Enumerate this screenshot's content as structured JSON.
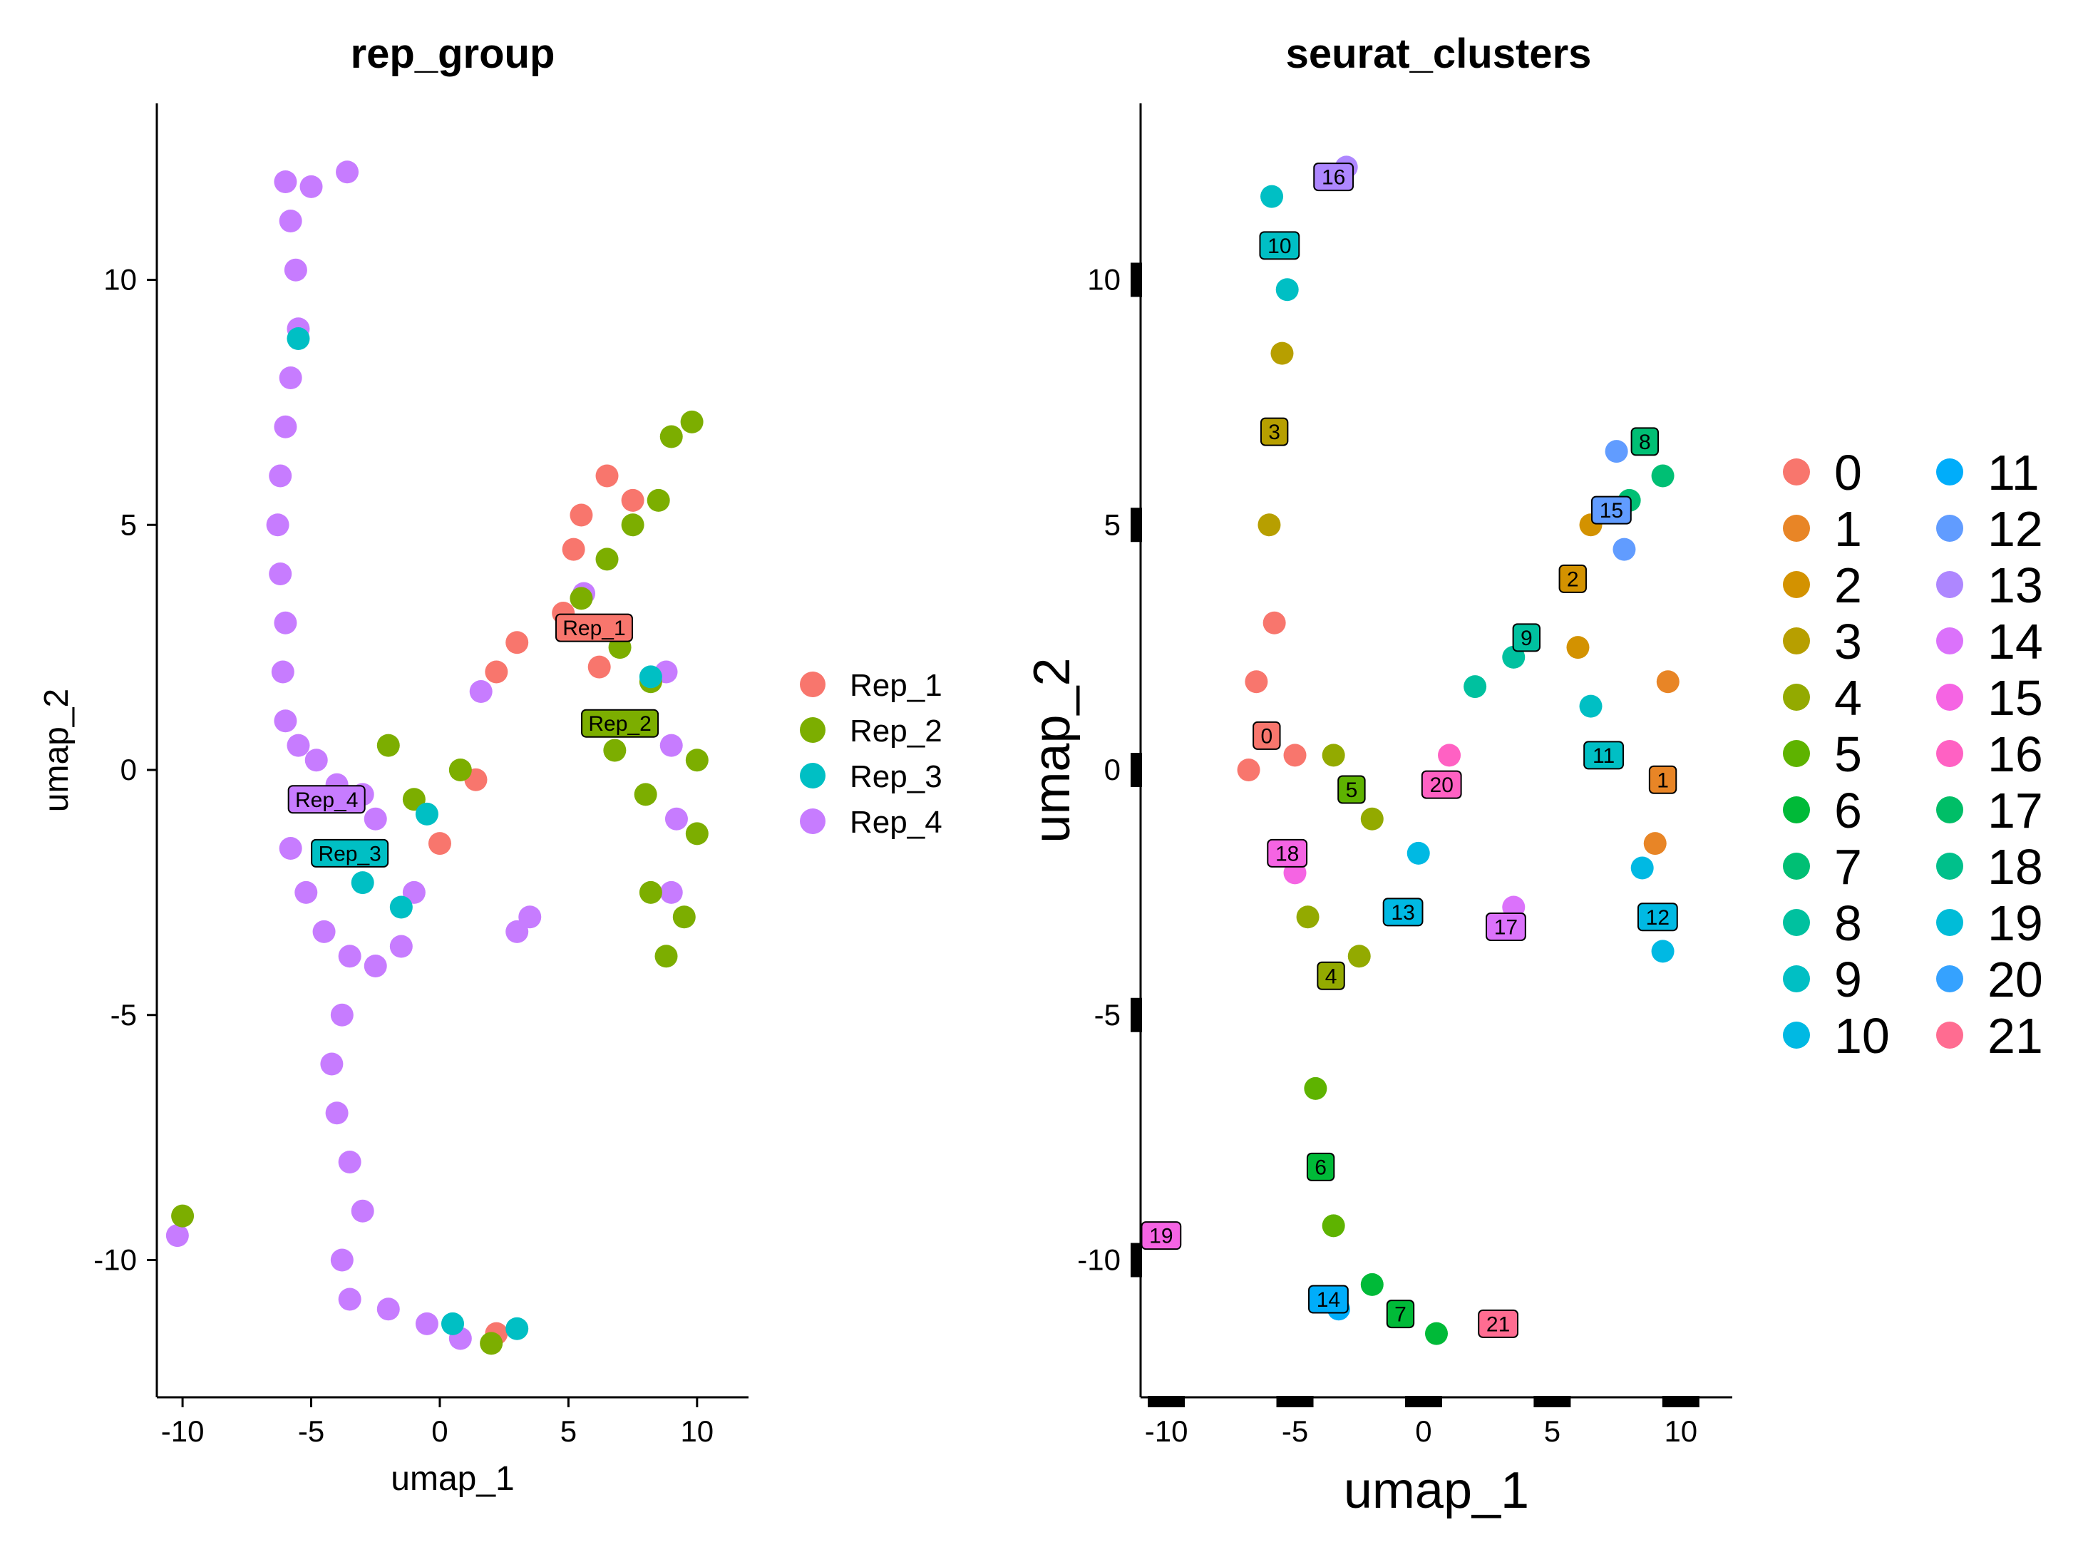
{
  "chart_data": [
    {
      "type": "scatter",
      "title": "rep_group",
      "xlabel": "umap_1",
      "ylabel": "umap_2",
      "xlim": [
        -11,
        12
      ],
      "ylim": [
        -12.8,
        13.6
      ],
      "xticks": [
        -10,
        -5,
        0,
        5,
        10
      ],
      "xtick_labels": [
        "-10",
        "-5",
        "0",
        "5",
        "10"
      ],
      "yticks": [
        -10,
        -5,
        0,
        5,
        10
      ],
      "ytick_labels": [
        "-10",
        "-5",
        "0",
        "5",
        "10"
      ],
      "grid": false,
      "legend_position": "right",
      "series": [
        {
          "name": "Rep_1",
          "color": "#F8766D"
        },
        {
          "name": "Rep_2",
          "color": "#7CAE00"
        },
        {
          "name": "Rep_3",
          "color": "#00BFC4"
        },
        {
          "name": "Rep_4",
          "color": "#C77CFF"
        }
      ],
      "group_labels": [
        {
          "text": "Rep_1",
          "x": 6.0,
          "y": 2.9,
          "color": "#F8766D"
        },
        {
          "text": "Rep_2",
          "x": 7.0,
          "y": 0.95,
          "color": "#7CAE00"
        },
        {
          "text": "Rep_3",
          "x": -3.5,
          "y": -1.7,
          "color": "#00BFC4"
        },
        {
          "text": "Rep_4",
          "x": -4.4,
          "y": -0.6,
          "color": "#C77CFF"
        }
      ],
      "points": [
        {
          "x": -6.0,
          "y": 12.0,
          "series": 3
        },
        {
          "x": -5.8,
          "y": 11.2,
          "series": 3
        },
        {
          "x": -5.6,
          "y": 10.2,
          "series": 3
        },
        {
          "x": -5.5,
          "y": 9.0,
          "series": 3
        },
        {
          "x": -5.8,
          "y": 8.0,
          "series": 3
        },
        {
          "x": -6.0,
          "y": 7.0,
          "series": 3
        },
        {
          "x": -6.2,
          "y": 6.0,
          "series": 3
        },
        {
          "x": -6.3,
          "y": 5.0,
          "series": 3
        },
        {
          "x": -6.2,
          "y": 4.0,
          "series": 3
        },
        {
          "x": -6.0,
          "y": 3.0,
          "series": 3
        },
        {
          "x": -6.1,
          "y": 2.0,
          "series": 3
        },
        {
          "x": -6.0,
          "y": 1.0,
          "series": 3
        },
        {
          "x": -5.5,
          "y": 0.5,
          "series": 3
        },
        {
          "x": -4.8,
          "y": 0.2,
          "series": 3
        },
        {
          "x": -4.0,
          "y": -0.3,
          "series": 3
        },
        {
          "x": -3.0,
          "y": -0.5,
          "series": 3
        },
        {
          "x": -2.5,
          "y": -1.0,
          "series": 3
        },
        {
          "x": -5.8,
          "y": -1.6,
          "series": 3
        },
        {
          "x": -5.2,
          "y": -2.5,
          "series": 3
        },
        {
          "x": -4.5,
          "y": -3.3,
          "series": 3
        },
        {
          "x": -3.5,
          "y": -3.8,
          "series": 3
        },
        {
          "x": -2.5,
          "y": -4.0,
          "series": 3
        },
        {
          "x": -1.5,
          "y": -3.6,
          "series": 3
        },
        {
          "x": -1.0,
          "y": -2.5,
          "series": 3
        },
        {
          "x": -3.8,
          "y": -5.0,
          "series": 3
        },
        {
          "x": -4.2,
          "y": -6.0,
          "series": 3
        },
        {
          "x": -4.0,
          "y": -7.0,
          "series": 3
        },
        {
          "x": -3.5,
          "y": -8.0,
          "series": 3
        },
        {
          "x": -3.0,
          "y": -9.0,
          "series": 3
        },
        {
          "x": -3.8,
          "y": -10.0,
          "series": 3
        },
        {
          "x": -3.5,
          "y": -10.8,
          "series": 3
        },
        {
          "x": -2.0,
          "y": -11.0,
          "series": 3
        },
        {
          "x": -0.5,
          "y": -11.3,
          "series": 3
        },
        {
          "x": 0.8,
          "y": -11.6,
          "series": 3
        },
        {
          "x": -10.2,
          "y": -9.5,
          "series": 3
        },
        {
          "x": 1.6,
          "y": 1.6,
          "series": 3
        },
        {
          "x": 3.5,
          "y": -3.0,
          "series": 3
        },
        {
          "x": 3.0,
          "y": -3.3,
          "series": 3
        },
        {
          "x": -5.0,
          "y": 11.9,
          "series": 3
        },
        {
          "x": -3.6,
          "y": 12.2,
          "series": 3
        },
        {
          "x": 5.6,
          "y": 3.6,
          "series": 3
        },
        {
          "x": 8.8,
          "y": 2.0,
          "series": 3
        },
        {
          "x": 9.0,
          "y": 0.5,
          "series": 3
        },
        {
          "x": 9.2,
          "y": -1.0,
          "series": 3
        },
        {
          "x": 9.0,
          "y": -2.5,
          "series": 3
        },
        {
          "x": 6.5,
          "y": 6.0,
          "series": 0
        },
        {
          "x": 5.5,
          "y": 5.2,
          "series": 0
        },
        {
          "x": 5.2,
          "y": 4.5,
          "series": 0
        },
        {
          "x": 4.8,
          "y": 3.2,
          "series": 0
        },
        {
          "x": 3.0,
          "y": 2.6,
          "series": 0
        },
        {
          "x": 2.2,
          "y": 2.0,
          "series": 0
        },
        {
          "x": 1.4,
          "y": -0.2,
          "series": 0
        },
        {
          "x": 6.2,
          "y": 2.1,
          "series": 0
        },
        {
          "x": 7.5,
          "y": 5.5,
          "series": 0
        },
        {
          "x": 0.0,
          "y": -1.5,
          "series": 0
        },
        {
          "x": 2.2,
          "y": -11.5,
          "series": 0
        },
        {
          "x": 9.0,
          "y": 6.8,
          "series": 1
        },
        {
          "x": 8.5,
          "y": 5.5,
          "series": 1
        },
        {
          "x": 7.5,
          "y": 5.0,
          "series": 1
        },
        {
          "x": 6.5,
          "y": 4.3,
          "series": 1
        },
        {
          "x": 5.5,
          "y": 3.5,
          "series": 1
        },
        {
          "x": 7.0,
          "y": 2.5,
          "series": 1
        },
        {
          "x": 8.2,
          "y": 1.8,
          "series": 1
        },
        {
          "x": 6.8,
          "y": 0.4,
          "series": 1
        },
        {
          "x": 8.0,
          "y": -0.5,
          "series": 1
        },
        {
          "x": 10.0,
          "y": 0.2,
          "series": 1
        },
        {
          "x": 10.0,
          "y": -1.3,
          "series": 1
        },
        {
          "x": 8.2,
          "y": -2.5,
          "series": 1
        },
        {
          "x": 9.5,
          "y": -3.0,
          "series": 1
        },
        {
          "x": 8.8,
          "y": -3.8,
          "series": 1
        },
        {
          "x": -1.0,
          "y": -0.6,
          "series": 1
        },
        {
          "x": 0.8,
          "y": 0.0,
          "series": 1
        },
        {
          "x": -2.0,
          "y": 0.5,
          "series": 1
        },
        {
          "x": -10.0,
          "y": -9.1,
          "series": 1
        },
        {
          "x": 2.0,
          "y": -11.7,
          "series": 1
        },
        {
          "x": 9.8,
          "y": 7.1,
          "series": 1
        },
        {
          "x": -3.0,
          "y": -2.3,
          "series": 2
        },
        {
          "x": -1.5,
          "y": -2.8,
          "series": 2
        },
        {
          "x": -0.5,
          "y": -0.9,
          "series": 2
        },
        {
          "x": -5.5,
          "y": 8.8,
          "series": 2
        },
        {
          "x": 0.5,
          "y": -11.3,
          "series": 2
        },
        {
          "x": 3.0,
          "y": -11.4,
          "series": 2
        },
        {
          "x": 8.2,
          "y": 1.9,
          "series": 2
        }
      ]
    },
    {
      "type": "scatter",
      "title": "seurat_clusters",
      "xlabel": "umap_1",
      "ylabel": "umap_2",
      "xlim": [
        -11,
        12
      ],
      "ylim": [
        -12.8,
        13.6
      ],
      "xticks": [
        -10,
        -5,
        0,
        5,
        10
      ],
      "xtick_labels": [
        "-10",
        "-5",
        "0",
        "5",
        "10"
      ],
      "yticks": [
        -10,
        -5,
        0,
        5,
        10
      ],
      "ytick_labels": [
        "-10",
        "-5",
        "0",
        "5",
        "10"
      ],
      "grid": false,
      "legend_position": "right",
      "legend_columns": 2,
      "series": [
        {
          "name": "0",
          "color": "#F8766D"
        },
        {
          "name": "1",
          "color": "#E88526"
        },
        {
          "name": "2",
          "color": "#D39200"
        },
        {
          "name": "3",
          "color": "#B79F00"
        },
        {
          "name": "4",
          "color": "#93AA00"
        },
        {
          "name": "5",
          "color": "#5EB300"
        },
        {
          "name": "6",
          "color": "#00BA38"
        },
        {
          "name": "7",
          "color": "#00BF74"
        },
        {
          "name": "8",
          "color": "#00C19F"
        },
        {
          "name": "9",
          "color": "#00BFC4"
        },
        {
          "name": "10",
          "color": "#00B9E3"
        },
        {
          "name": "11",
          "color": "#00ADFA"
        },
        {
          "name": "12",
          "color": "#619CFF"
        },
        {
          "name": "13",
          "color": "#AE87FF"
        },
        {
          "name": "14",
          "color": "#DB72FB"
        },
        {
          "name": "15",
          "color": "#F564E3"
        },
        {
          "name": "16",
          "color": "#FF61C3"
        },
        {
          "name": "17",
          "color": "#00BE67"
        },
        {
          "name": "18",
          "color": "#00C08B"
        },
        {
          "name": "19",
          "color": "#00BCD8"
        },
        {
          "name": "20",
          "color": "#35A2FF"
        },
        {
          "name": "21",
          "color": "#FF6C91"
        }
      ],
      "cluster_labels": [
        {
          "text": "0",
          "x": -6.1,
          "y": 0.7,
          "series": 0
        },
        {
          "text": "1",
          "x": 9.3,
          "y": -0.2,
          "series": 1
        },
        {
          "text": "2",
          "x": 5.8,
          "y": 3.9,
          "series": 2
        },
        {
          "text": "3",
          "x": -5.8,
          "y": 6.9,
          "series": 3
        },
        {
          "text": "4",
          "x": -3.6,
          "y": -4.2,
          "series": 4
        },
        {
          "text": "5",
          "x": -2.8,
          "y": -0.4,
          "series": 5
        },
        {
          "text": "6",
          "x": -4.0,
          "y": -8.1,
          "series": 6
        },
        {
          "text": "7",
          "x": -0.9,
          "y": -11.1,
          "series": 6
        },
        {
          "text": "8",
          "x": 8.6,
          "y": 6.7,
          "series": 7
        },
        {
          "text": "9",
          "x": 4.0,
          "y": 2.7,
          "series": 8
        },
        {
          "text": "10",
          "x": -5.6,
          "y": 10.7,
          "series": 9
        },
        {
          "text": "11",
          "x": 7.0,
          "y": 0.3,
          "series": 9
        },
        {
          "text": "12",
          "x": 9.1,
          "y": -3.0,
          "series": 10
        },
        {
          "text": "13",
          "x": -0.8,
          "y": -2.9,
          "series": 10
        },
        {
          "text": "14",
          "x": -3.7,
          "y": -10.8,
          "series": 11
        },
        {
          "text": "15",
          "x": 7.3,
          "y": 5.3,
          "series": 12
        },
        {
          "text": "16",
          "x": -3.5,
          "y": 12.1,
          "series": 13
        },
        {
          "text": "17",
          "x": 3.2,
          "y": -3.2,
          "series": 14
        },
        {
          "text": "18",
          "x": -5.3,
          "y": -1.7,
          "series": 15
        },
        {
          "text": "19",
          "x": -10.2,
          "y": -9.5,
          "series": 15
        },
        {
          "text": "20",
          "x": 0.7,
          "y": -0.3,
          "series": 16
        },
        {
          "text": "21",
          "x": 2.9,
          "y": -11.3,
          "series": 21
        }
      ],
      "points": [
        {
          "x": -6.1,
          "y": 0.7,
          "series": 0
        },
        {
          "x": -6.5,
          "y": 1.8,
          "series": 0
        },
        {
          "x": -5.8,
          "y": 3.0,
          "series": 0
        },
        {
          "x": -5.0,
          "y": 0.3,
          "series": 0
        },
        {
          "x": -6.8,
          "y": 0.0,
          "series": 0
        },
        {
          "x": 9.3,
          "y": -0.2,
          "series": 1
        },
        {
          "x": 9.5,
          "y": 1.8,
          "series": 1
        },
        {
          "x": 9.0,
          "y": -1.5,
          "series": 1
        },
        {
          "x": 5.8,
          "y": 3.9,
          "series": 2
        },
        {
          "x": 6.5,
          "y": 5.0,
          "series": 2
        },
        {
          "x": 6.0,
          "y": 2.5,
          "series": 2
        },
        {
          "x": -5.8,
          "y": 6.9,
          "series": 3
        },
        {
          "x": -5.5,
          "y": 8.5,
          "series": 3
        },
        {
          "x": -6.0,
          "y": 5.0,
          "series": 3
        },
        {
          "x": -3.6,
          "y": -4.2,
          "series": 4
        },
        {
          "x": -2.5,
          "y": -3.8,
          "series": 4
        },
        {
          "x": -4.5,
          "y": -3.0,
          "series": 4
        },
        {
          "x": -2.8,
          "y": -0.4,
          "series": 4
        },
        {
          "x": -3.5,
          "y": 0.3,
          "series": 4
        },
        {
          "x": -2.0,
          "y": -1.0,
          "series": 4
        },
        {
          "x": -4.0,
          "y": -8.1,
          "series": 5
        },
        {
          "x": -4.2,
          "y": -6.5,
          "series": 5
        },
        {
          "x": -3.5,
          "y": -9.3,
          "series": 5
        },
        {
          "x": -0.9,
          "y": -11.1,
          "series": 6
        },
        {
          "x": 0.5,
          "y": -11.5,
          "series": 6
        },
        {
          "x": -2.0,
          "y": -10.5,
          "series": 6
        },
        {
          "x": 8.6,
          "y": 6.7,
          "series": 7
        },
        {
          "x": 9.3,
          "y": 6.0,
          "series": 7
        },
        {
          "x": 8.0,
          "y": 5.5,
          "series": 7
        },
        {
          "x": 4.0,
          "y": 2.7,
          "series": 8
        },
        {
          "x": 3.5,
          "y": 2.3,
          "series": 8
        },
        {
          "x": 2.0,
          "y": 1.7,
          "series": 8
        },
        {
          "x": -5.6,
          "y": 10.7,
          "series": 9
        },
        {
          "x": -5.9,
          "y": 11.7,
          "series": 9
        },
        {
          "x": -5.3,
          "y": 9.8,
          "series": 9
        },
        {
          "x": 7.0,
          "y": 0.3,
          "series": 9
        },
        {
          "x": 6.5,
          "y": 1.3,
          "series": 9
        },
        {
          "x": 9.1,
          "y": -3.0,
          "series": 10
        },
        {
          "x": 8.5,
          "y": -2.0,
          "series": 10
        },
        {
          "x": 9.3,
          "y": -3.7,
          "series": 10
        },
        {
          "x": -0.8,
          "y": -2.9,
          "series": 10
        },
        {
          "x": -0.2,
          "y": -1.7,
          "series": 10
        },
        {
          "x": -3.7,
          "y": -10.8,
          "series": 11
        },
        {
          "x": -3.3,
          "y": -11.0,
          "series": 11
        },
        {
          "x": 7.3,
          "y": 5.3,
          "series": 12
        },
        {
          "x": 7.5,
          "y": 6.5,
          "series": 12
        },
        {
          "x": 7.8,
          "y": 4.5,
          "series": 12
        },
        {
          "x": -3.5,
          "y": 12.1,
          "series": 13
        },
        {
          "x": -3.0,
          "y": 12.3,
          "series": 13
        },
        {
          "x": 3.2,
          "y": -3.2,
          "series": 14
        },
        {
          "x": 3.5,
          "y": -2.8,
          "series": 14
        },
        {
          "x": -5.3,
          "y": -1.7,
          "series": 15
        },
        {
          "x": -5.0,
          "y": -2.1,
          "series": 15
        },
        {
          "x": -10.2,
          "y": -9.5,
          "series": 15
        },
        {
          "x": 0.7,
          "y": -0.3,
          "series": 16
        },
        {
          "x": 1.0,
          "y": 0.3,
          "series": 16
        },
        {
          "x": 2.9,
          "y": -11.3,
          "series": 21
        }
      ]
    }
  ]
}
